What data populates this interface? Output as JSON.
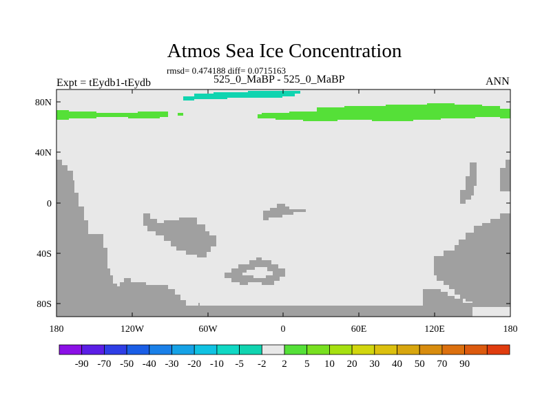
{
  "title": "Atmos Sea Ice Concentration",
  "stats": "rmsd= 0.474188 diff= 0.0715163",
  "left_string": "Expt = tEydb1-tEydb",
  "center_string": "525_0_MaBP - 525_0_MaBP",
  "right_string": "ANN",
  "colors": {
    "land": "#a0a0a0",
    "near_zero": "#e8e8e8",
    "positive_anomaly": "#55e038",
    "negative_anomaly": "#10d4b0"
  },
  "map_data": {
    "type": "map",
    "projection": "cylindrical-equidistant",
    "lon_range": [
      -180,
      180
    ],
    "lat_range": [
      -90,
      90
    ],
    "lat_ticks": [
      "80N",
      "40N",
      "0",
      "40S",
      "80S"
    ],
    "lon_ticks": [
      "180",
      "120W",
      "60W",
      "0",
      "60E",
      "120E",
      "180"
    ],
    "features": [
      {
        "kind": "anomaly",
        "sign": "positive",
        "region": "northern high-latitude band"
      },
      {
        "kind": "anomaly",
        "sign": "negative",
        "region": "north of the band, 0-60W"
      }
    ]
  },
  "colorbar": {
    "colors": [
      "#8b10e6",
      "#5b1ee6",
      "#2e3ee6",
      "#1a5ee6",
      "#1a80e8",
      "#16a2e6",
      "#10c2e2",
      "#10d8c4",
      "#10d4b0",
      "#e8e8e8",
      "#55e038",
      "#78e020",
      "#a6e010",
      "#d2d60e",
      "#dcc00e",
      "#d8a60e",
      "#d88c0e",
      "#dc700e",
      "#dc5a0e",
      "#e03c0e"
    ],
    "labels": [
      "-90",
      "-70",
      "-50",
      "-40",
      "-30",
      "-20",
      "-10",
      "-5",
      "-2",
      "2",
      "5",
      "10",
      "20",
      "30",
      "40",
      "50",
      "70",
      "90"
    ]
  }
}
